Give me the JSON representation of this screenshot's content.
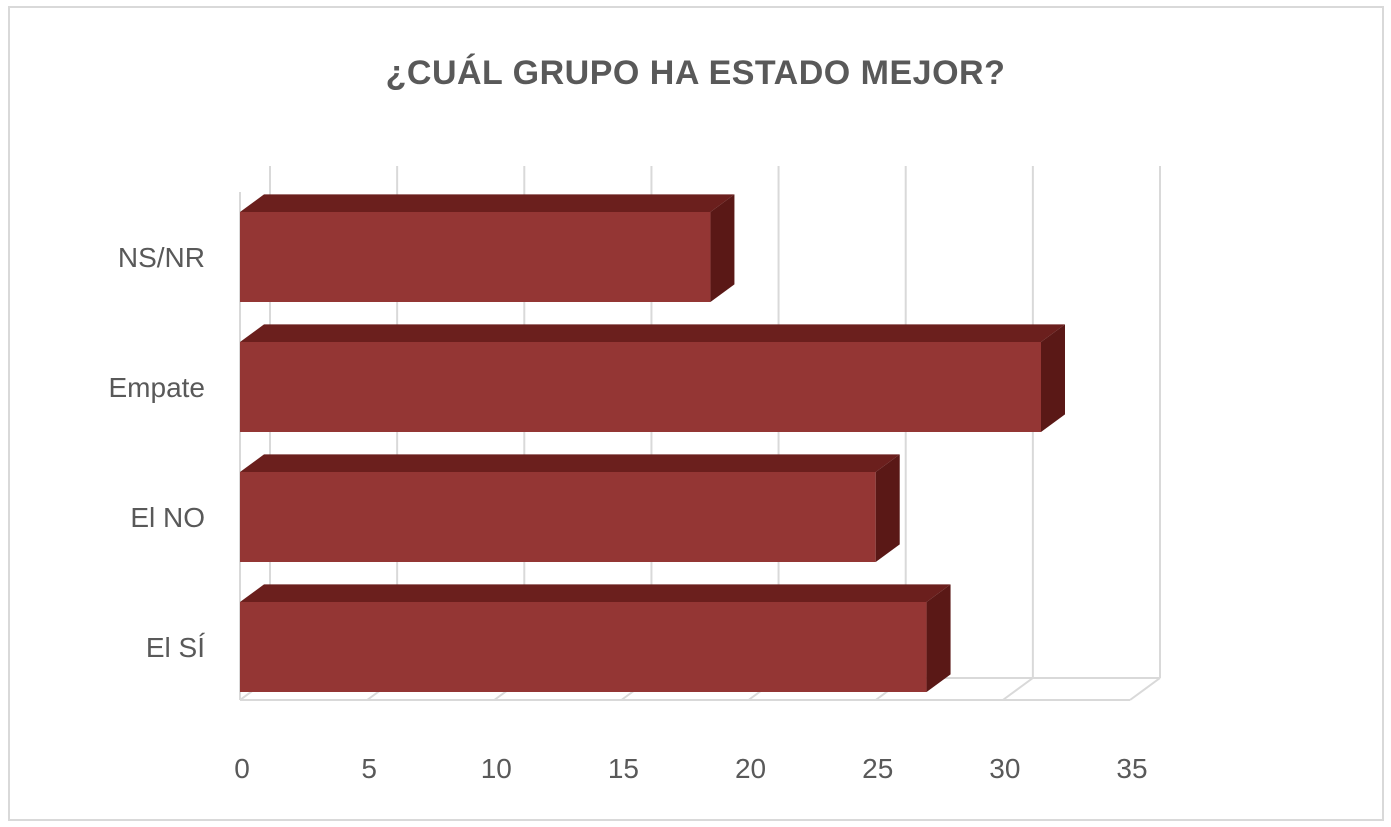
{
  "chart_data": {
    "type": "bar",
    "orientation": "horizontal",
    "title": "¿CUÁL GRUPO HA ESTADO MEJOR?",
    "categories": [
      "El SÍ",
      "El NO",
      "Empate",
      "NS/NR"
    ],
    "values": [
      27,
      25,
      31.5,
      18.5
    ],
    "xlim": [
      0,
      35
    ],
    "xticks": [
      "0",
      "5",
      "10",
      "15",
      "20",
      "25",
      "30",
      "35"
    ],
    "grid": true,
    "legend": "none",
    "style": "3d",
    "bar_color": "#943634",
    "bar_top_color": "#6b1f1d",
    "bar_side_color": "#5a1816"
  }
}
